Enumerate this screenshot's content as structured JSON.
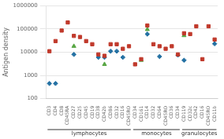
{
  "chart_data": {
    "type": "scatter",
    "categories": [
      "CD3",
      "CD4",
      "CD8",
      "CD45RA",
      "CD27",
      "CD25",
      "CD45",
      "CD19",
      "CD38",
      "CD42b",
      "CD86",
      "CD32",
      "CD16",
      "CD45RO",
      "CD34",
      "CD161",
      "CD14",
      "CD32",
      "CD64",
      "CD45RO",
      "CD36",
      "CD34",
      "CD119",
      "CD32c",
      "CD42",
      "CD16",
      "CD45RO",
      "CD11b"
    ],
    "series": [
      {
        "color": "#c0392b",
        "marker": "square",
        "values": [
          11000,
          30000,
          85000,
          190000,
          50000,
          45000,
          30000,
          22000,
          8000,
          7000,
          22000,
          22000,
          14000,
          18000,
          3000,
          5000,
          140000,
          22000,
          18000,
          14000,
          18000,
          8000,
          65000,
          60000,
          130000,
          5000,
          130000,
          35000
        ]
      },
      {
        "color": "#2471a3",
        "marker": "diamond",
        "values": [
          450,
          450,
          null,
          null,
          8000,
          null,
          null,
          null,
          6000,
          6000,
          11000,
          11000,
          6000,
          null,
          null,
          null,
          60000,
          null,
          6500,
          null,
          null,
          7500,
          4500,
          null,
          null,
          null,
          null,
          23000
        ]
      },
      {
        "color": "#58a644",
        "marker": "triangle",
        "values": [
          null,
          null,
          null,
          null,
          18000,
          null,
          null,
          null,
          null,
          3000,
          null,
          null,
          null,
          null,
          null,
          4500,
          95000,
          null,
          null,
          null,
          null,
          null,
          52000,
          null,
          null,
          null,
          null,
          null
        ]
      }
    ],
    "y_label": "Antigen density",
    "log": "y",
    "ylim": [
      100,
      1000000
    ],
    "yticks": [
      100,
      1000,
      10000,
      100000,
      1000000
    ],
    "grid": "y",
    "annotations": [
      {
        "text": "lymphocytes",
        "start": 0,
        "end": 13
      },
      {
        "text": "monocytes",
        "start": 14,
        "end": 21
      },
      {
        "text": "granulocytes",
        "start": 22,
        "end": 27
      }
    ]
  }
}
